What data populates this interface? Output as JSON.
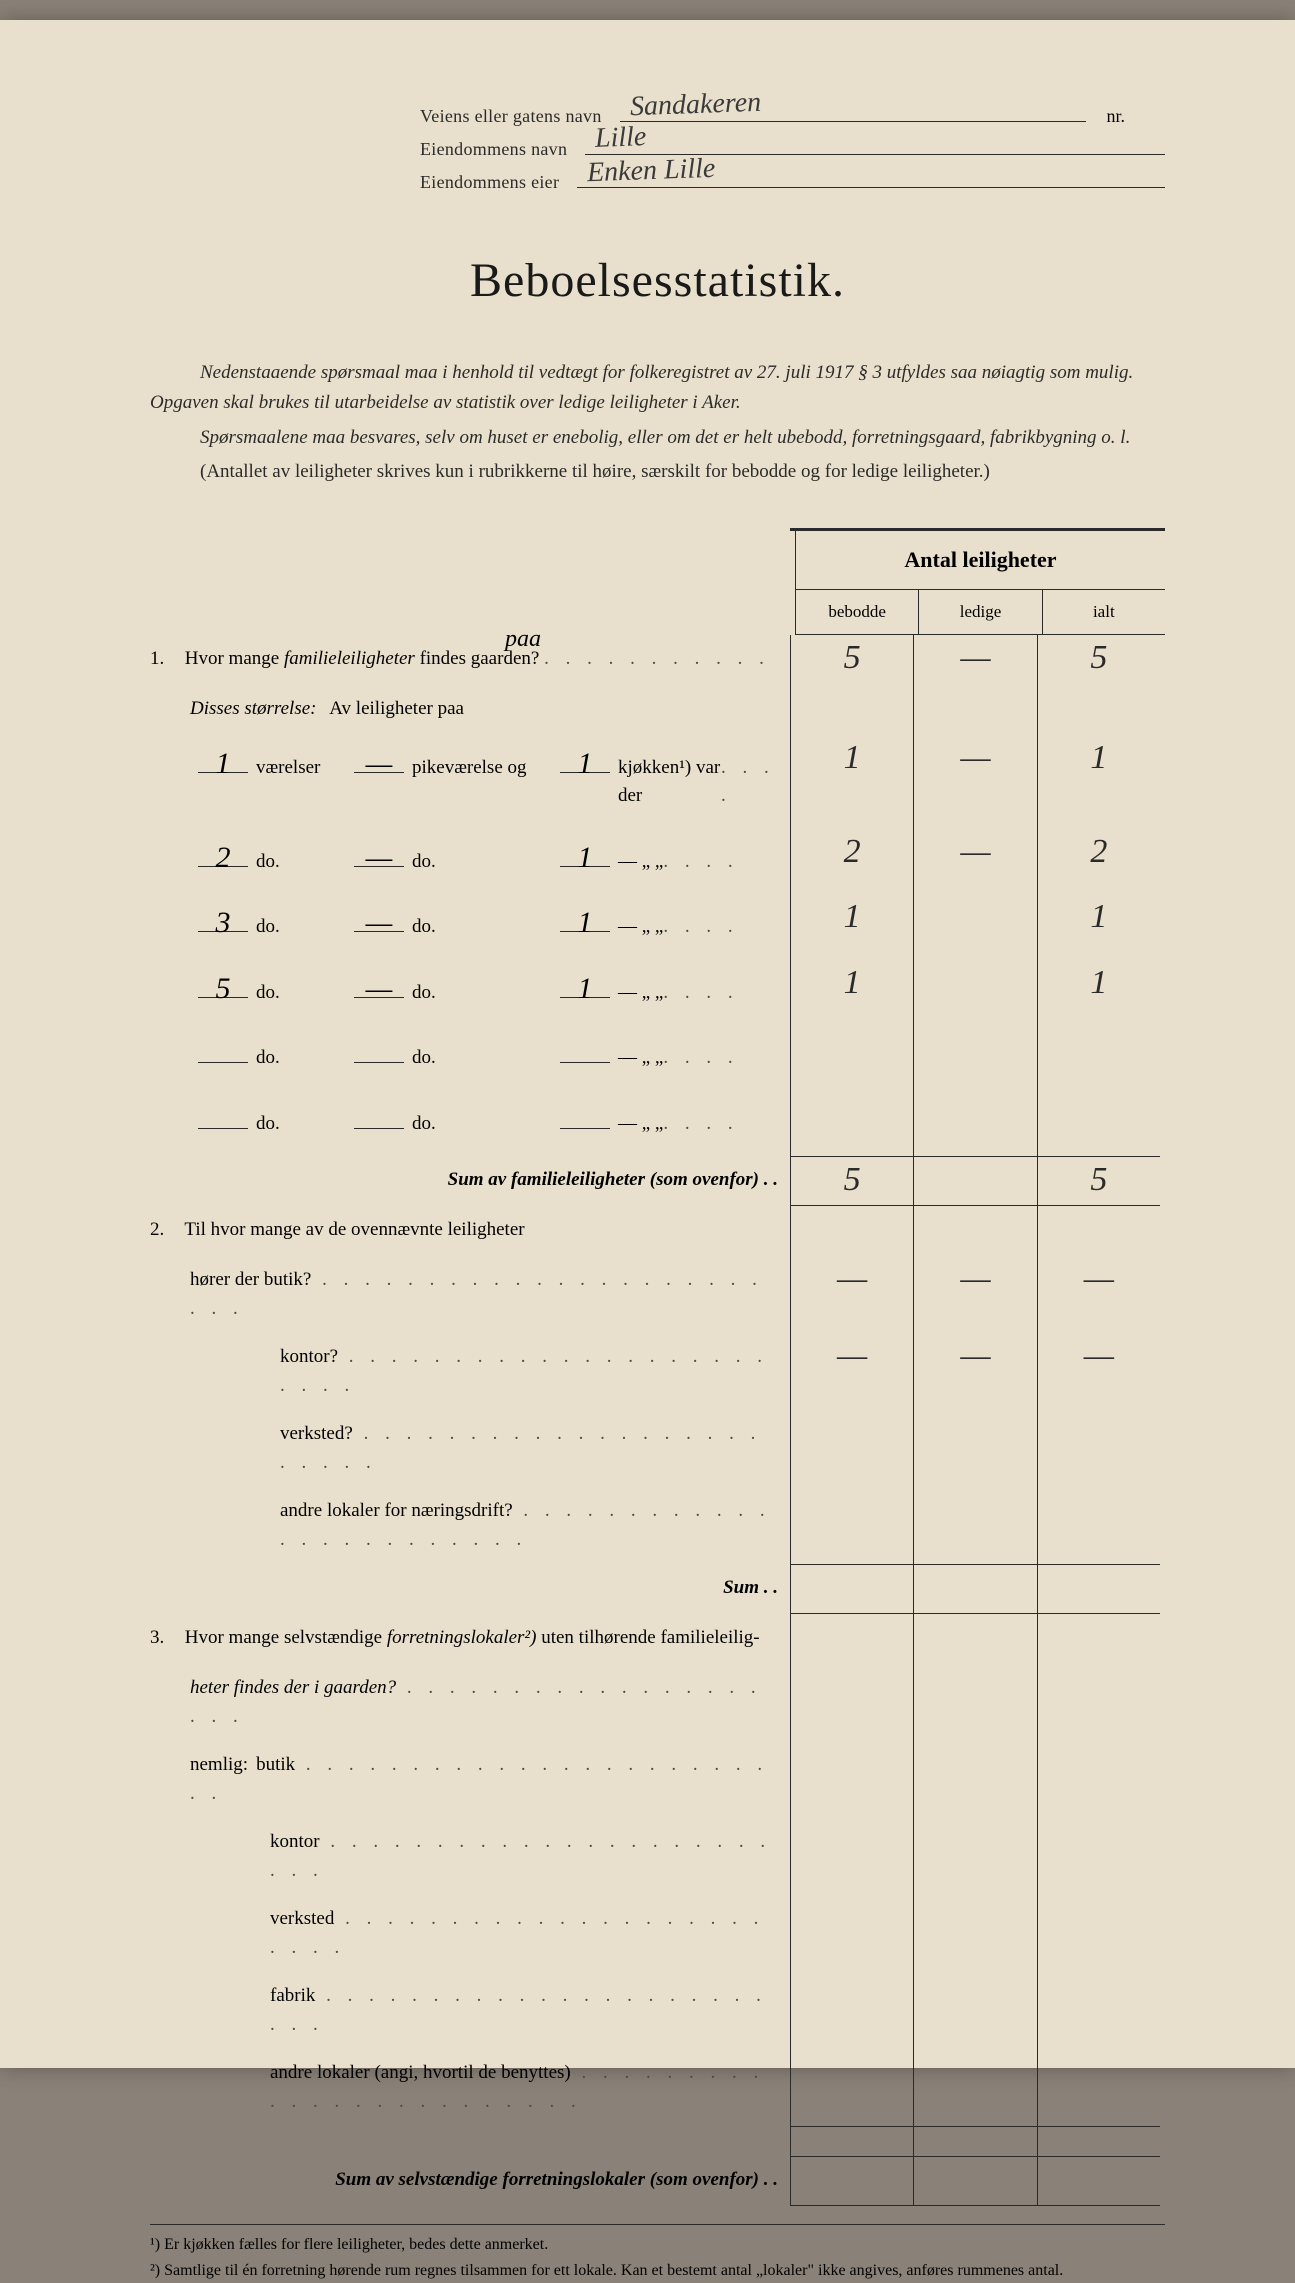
{
  "header": {
    "street_label": "Veiens eller gatens navn",
    "street_value": "Sandakeren",
    "nr_label": "nr.",
    "property_name_label": "Eiendommens navn",
    "property_name_value": "Lille",
    "owner_label": "Eiendommens eier",
    "owner_value": "Enken Lille"
  },
  "title": "Beboelsesstatistik.",
  "intro": {
    "p1_a": "Nedenstaaende spørsmaal maa i henhold til vedtægt for folkeregistret av 27. juli 1917 § 3 utfyldes saa nøiagtig som mulig. Opgaven skal brukes til utarbeidelse av statistik over ledige leiligheter i Aker.",
    "p2": "Spørsmaalene maa besvares, selv om huset er enebolig, eller om det er helt ubebodd, forretningsgaard, fabrikbygning o. l.",
    "p3": "(Antallet av leiligheter skrives kun i rubrikkerne til høire, særskilt for bebodde og for ledige leiligheter.)"
  },
  "table": {
    "header_title": "Antal leiligheter",
    "col_bebodde": "bebodde",
    "col_ledige": "ledige",
    "col_ialt": "ialt"
  },
  "annotation_paa": "paa",
  "q1": {
    "text_a": "Hvor mange ",
    "text_b": "familieleiligheter",
    "text_c": " findes   gaarden?",
    "vals": {
      "bebodde": "5",
      "ledige": "—",
      "ialt": "5"
    },
    "size_label": "Disses størrelse:",
    "size_intro": "Av leiligheter paa",
    "rows": [
      {
        "v": "1",
        "p": "—",
        "k": "1",
        "bebodde": "1",
        "ledige": "—",
        "ialt": "1"
      },
      {
        "v": "2",
        "p": "—",
        "k": "1",
        "bebodde": "2",
        "ledige": "—",
        "ialt": "2"
      },
      {
        "v": "3",
        "p": "—",
        "k": "1",
        "bebodde": "1",
        "ledige": "",
        "ialt": "1"
      },
      {
        "v": "5",
        "p": "—",
        "k": "1",
        "bebodde": "1",
        "ledige": "",
        "ialt": "1"
      },
      {
        "v": "",
        "p": "",
        "k": "",
        "bebodde": "",
        "ledige": "",
        "ialt": ""
      },
      {
        "v": "",
        "p": "",
        "k": "",
        "bebodde": "",
        "ledige": "",
        "ialt": ""
      }
    ],
    "word_vaerelser": "værelser",
    "word_pike": "pikeværelse og",
    "word_kjokken": "kjøkken¹) var der",
    "word_do": "do.",
    "sum_label": "Sum av familieleiligheter",
    "sum_suffix": " (som ovenfor) . .",
    "sum": {
      "bebodde": "5",
      "ledige": "",
      "ialt": "5"
    }
  },
  "q2": {
    "text": "Til hvor mange av de ovennævnte leiligheter",
    "rows": [
      {
        "label": "hører der butik?",
        "b": "—",
        "l": "—",
        "i": "—"
      },
      {
        "label": "kontor?",
        "b": "—",
        "l": "—",
        "i": "—"
      },
      {
        "label": "verksted?",
        "b": "",
        "l": "",
        "i": ""
      },
      {
        "label": "andre lokaler for næringsdrift?",
        "b": "",
        "l": "",
        "i": ""
      }
    ],
    "sum_label": "Sum . ."
  },
  "q3": {
    "text_a": "Hvor mange selvstændige ",
    "text_b": "forretningslokaler²)",
    "text_c": " uten tilhørende familieleilig-",
    "text_d": "heter findes der i gaarden?",
    "nemlig": "nemlig:",
    "rows": [
      {
        "label": "butik"
      },
      {
        "label": "kontor"
      },
      {
        "label": "verksted"
      },
      {
        "label": "fabrik"
      },
      {
        "label": "andre lokaler (angi, hvortil de benyttes)"
      }
    ],
    "sum_label": "Sum av selvstændige forretningslokaler",
    "sum_suffix": " (som ovenfor) . ."
  },
  "footnotes": {
    "f1": "¹) Er kjøkken fælles for flere leiligheter, bedes dette anmerket.",
    "f2": "²) Samtlige til én forretning hørende rum regnes tilsammen for ett lokale. Kan et bestemt antal „lokaler\" ikke angives, anføres rummenes antal."
  },
  "colors": {
    "paper": "#e8e0cc",
    "ink": "#2a2a2a",
    "handwriting": "#3a3a3a"
  }
}
